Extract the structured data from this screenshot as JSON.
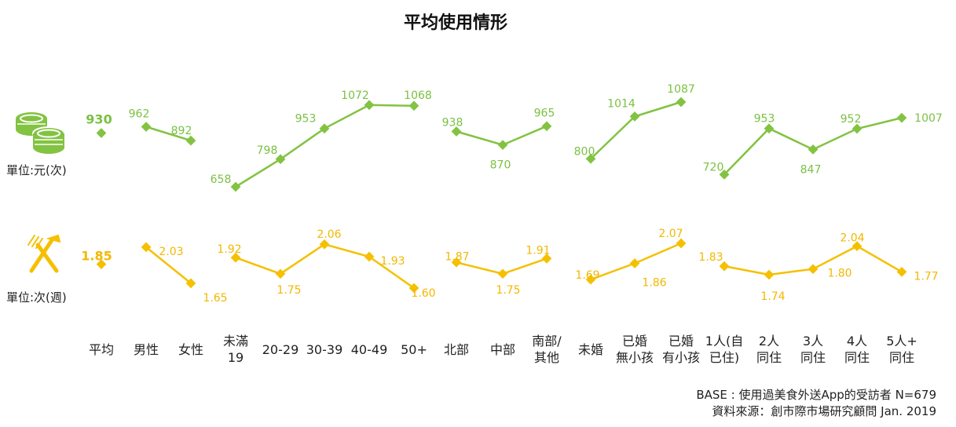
{
  "title": "平均使用情形",
  "units": {
    "spend": "單位:元(次)",
    "freq": "單位:次(週)"
  },
  "icons": {
    "spend": "coins-icon",
    "freq": "fork-knife-icon"
  },
  "colors": {
    "spend": "#82c341",
    "freq": "#f5c000"
  },
  "footnotes": [
    "BASE : 使用過美食外送App的受訪者 N=679",
    "資料來源：創市際市場研究顧問 Jan. 2019"
  ],
  "chart_data": {
    "type": "line",
    "title": "平均使用情形",
    "categories": [
      [
        "平均"
      ],
      [
        "男性"
      ],
      [
        "女性"
      ],
      [
        "未滿",
        "19"
      ],
      [
        "20-29"
      ],
      [
        "30-39"
      ],
      [
        "40-49"
      ],
      [
        "50+"
      ],
      [
        "北部"
      ],
      [
        "中部"
      ],
      [
        "南部/",
        "其他"
      ],
      [
        "未婚"
      ],
      [
        "已婚",
        "無小孩"
      ],
      [
        "已婚",
        "有小孩"
      ],
      [
        "1人(自",
        "已住)"
      ],
      [
        "2人",
        "同住"
      ],
      [
        "3人",
        "同住"
      ],
      [
        "4人",
        "同住"
      ],
      [
        "5人+",
        "同住"
      ]
    ],
    "groups": [
      [
        0
      ],
      [
        1,
        2
      ],
      [
        3,
        4,
        5,
        6,
        7
      ],
      [
        8,
        9,
        10
      ],
      [
        11,
        12,
        13
      ],
      [
        14,
        15,
        16,
        17,
        18
      ]
    ],
    "series": [
      {
        "unit": "單位:元(次)",
        "values": [
          930,
          962,
          892,
          658,
          798,
          953,
          1072,
          1068,
          938,
          870,
          965,
          800,
          1014,
          1087,
          720,
          953,
          847,
          952,
          1007
        ],
        "labels": [
          "930",
          "962",
          "892",
          "658",
          "798",
          "953",
          "1072",
          "1068",
          "938",
          "870",
          "965",
          "800",
          "1014",
          "1087",
          "720",
          "953",
          "847",
          "952",
          "1007"
        ]
      },
      {
        "unit": "單位:次(週)",
        "values": [
          1.85,
          2.03,
          1.65,
          1.92,
          1.75,
          2.06,
          1.93,
          1.6,
          1.87,
          1.75,
          1.91,
          1.69,
          1.86,
          2.07,
          1.83,
          1.74,
          1.8,
          2.04,
          1.77
        ],
        "labels": [
          "1.85",
          "2.03",
          "1.65",
          "1.92",
          "1.75",
          "2.06",
          "1.93",
          "1.60",
          "1.87",
          "1.75",
          "1.91",
          "1.69",
          "1.86",
          "2.07",
          "1.83",
          "1.74",
          "1.80",
          "2.04",
          "1.77"
        ]
      }
    ],
    "grid": false,
    "legend": "none"
  }
}
